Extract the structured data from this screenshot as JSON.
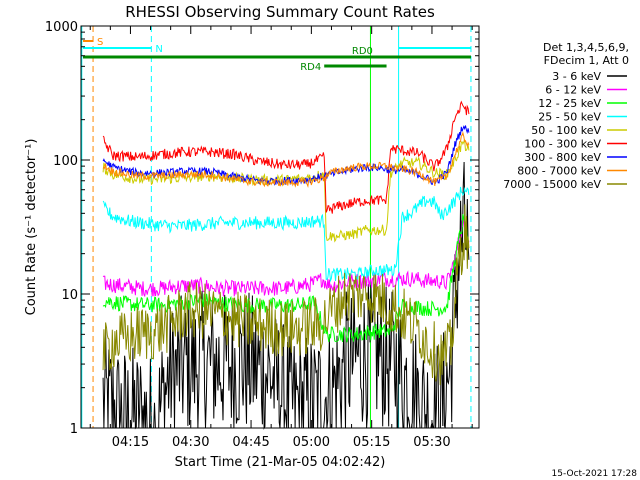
{
  "chart_data": {
    "type": "line",
    "title": "RHESSI Observing Summary Count Rates",
    "xlabel": "Start Time (21-Mar-05 04:02:42)",
    "ylabel": "Count Rate (s⁻¹ detector⁻¹)",
    "yscale": "log",
    "ylim": [
      1,
      1000
    ],
    "xlim_minutes": [
      0,
      99
    ],
    "x_ticks": [
      {
        "t": 12.3,
        "label": "04:15"
      },
      {
        "t": 27.3,
        "label": "04:30"
      },
      {
        "t": 42.3,
        "label": "04:45"
      },
      {
        "t": 57.3,
        "label": "05:00"
      },
      {
        "t": 72.3,
        "label": "05:15"
      },
      {
        "t": 87.3,
        "label": "05:30"
      }
    ],
    "y_ticks": [
      {
        "v": 1,
        "label": "1"
      },
      {
        "v": 10,
        "label": "10"
      },
      {
        "v": 100,
        "label": "100"
      },
      {
        "v": 1000,
        "label": "1000"
      }
    ],
    "legend_header": [
      "Det 1,3,4,5,6,9,",
      "FDecim 1, Att 0"
    ],
    "legend_position": "right",
    "timestamp": "15-Oct-2021 17:28",
    "flags": [
      {
        "label": "S",
        "color": "#ff8800",
        "t0": 0.5,
        "t1": 3.0
      },
      {
        "label": "N",
        "color": "#00ffff",
        "t0": 0.5,
        "t1": 17.5,
        "t2": 79.0,
        "t3": 97.0
      },
      {
        "label": "RD0",
        "color": "#008800",
        "t0": 0.5,
        "t1": 97.0
      },
      {
        "label": "RD4",
        "color": "#008800",
        "t0": 60.5,
        "t1": 76.0
      }
    ],
    "vlines": [
      {
        "t": 0.2,
        "color": "#00ffff",
        "style": "solid"
      },
      {
        "t": 3.0,
        "color": "#ff8800",
        "style": "dashed"
      },
      {
        "t": 17.5,
        "color": "#00ffff",
        "style": "dashed"
      },
      {
        "t": 79.0,
        "color": "#00ffff",
        "style": "solid"
      },
      {
        "t": 97.0,
        "color": "#00ffff",
        "style": "dashed"
      },
      {
        "t": 72.0,
        "color": "#00ff00",
        "style": "solid"
      }
    ],
    "series": [
      {
        "name": "3 - 6 keV",
        "color": "#000000",
        "x": [
          5.5,
          10,
          15,
          18.5,
          22,
          27,
          32,
          37,
          42,
          47,
          52,
          57,
          62,
          66,
          70,
          74,
          78,
          82,
          86,
          88,
          90,
          92,
          94,
          95.5,
          96.5
        ],
        "y": [
          1.6,
          1.2,
          1.2,
          1.0,
          2.5,
          3.0,
          3.0,
          3.0,
          3.0,
          2.5,
          1.5,
          1.5,
          1.8,
          3.0,
          3.5,
          3.5,
          3.0,
          2.0,
          1.3,
          1.3,
          1.5,
          3.0,
          20,
          32,
          18
        ]
      },
      {
        "name": "6 - 12 keV",
        "color": "#ff00ff",
        "x": [
          5.5,
          10,
          15,
          20,
          25,
          30,
          35,
          40,
          45,
          50,
          55,
          58,
          60,
          62,
          65,
          68,
          71,
          74,
          77,
          80,
          83,
          86,
          89,
          91,
          93,
          95,
          96.5
        ],
        "y": [
          12,
          11.5,
          11,
          11,
          11.5,
          11.5,
          11,
          11,
          11,
          11,
          11.5,
          12,
          13,
          11.5,
          12,
          12.5,
          12.5,
          13,
          13,
          13,
          13,
          12.5,
          12.5,
          12,
          18,
          35,
          25
        ]
      },
      {
        "name": "12 - 25 keV",
        "color": "#00ff00",
        "x": [
          5.5,
          10,
          15,
          20,
          25,
          30,
          35,
          40,
          45,
          50,
          55,
          58,
          61,
          64,
          68,
          71,
          74,
          77,
          80,
          83,
          86,
          89,
          91,
          93,
          95,
          96.5
        ],
        "y": [
          9,
          8.5,
          8.3,
          8.3,
          8.6,
          9,
          8.5,
          8.3,
          8.2,
          8.2,
          8.3,
          8.6,
          5,
          5,
          5,
          5.1,
          5.3,
          5.2,
          8.2,
          8,
          7.8,
          7.8,
          8,
          18,
          35,
          25
        ]
      },
      {
        "name": "25 - 50 keV",
        "color": "#00ffff",
        "x": [
          5.5,
          8,
          12,
          18,
          24,
          30,
          36,
          42,
          48,
          54,
          58,
          60.5,
          61,
          65,
          69,
          73,
          76,
          78,
          80,
          82,
          84,
          86,
          88,
          89.5,
          91,
          93,
          95,
          96.5
        ],
        "y": [
          44,
          38,
          35,
          33,
          32,
          33,
          34,
          34,
          34,
          34,
          35,
          35,
          14,
          14,
          14,
          15,
          15,
          15,
          38,
          40,
          45,
          50,
          48,
          38,
          42,
          50,
          60,
          55
        ]
      },
      {
        "name": "50 - 100 keV",
        "color": "#cccc00",
        "x": [
          5.5,
          8,
          14,
          20,
          26,
          32,
          38,
          44,
          50,
          56,
          59,
          60.5,
          61,
          64,
          68,
          71,
          74,
          76,
          77,
          80,
          84,
          88,
          91,
          93,
          95,
          96.5
        ],
        "y": [
          88,
          78,
          72,
          72,
          74,
          76,
          73,
          71,
          71,
          73,
          77,
          80,
          27,
          27,
          28,
          30,
          30,
          30,
          80,
          95,
          95,
          80,
          78,
          100,
          135,
          118
        ]
      },
      {
        "name": "100 - 300 keV",
        "color": "#ff0000",
        "x": [
          5.5,
          8,
          14,
          20,
          26,
          32,
          38,
          44,
          50,
          56,
          59,
          60.5,
          61,
          64,
          68,
          71,
          74,
          76,
          77,
          80,
          84,
          88,
          91,
          93,
          95,
          96.5
        ],
        "y": [
          140,
          108,
          105,
          110,
          115,
          115,
          110,
          98,
          92,
          92,
          100,
          105,
          42,
          45,
          48,
          50,
          50,
          50,
          122,
          118,
          112,
          88,
          120,
          210,
          260,
          220
        ]
      },
      {
        "name": "300 - 800 keV",
        "color": "#0000ff",
        "x": [
          5.5,
          8,
          14,
          20,
          26,
          32,
          38,
          44,
          50,
          56,
          59,
          60.5,
          62,
          65,
          68,
          71,
          74,
          76,
          77,
          80,
          84,
          88,
          91,
          93,
          95,
          96.5
        ],
        "y": [
          100,
          88,
          80,
          80,
          82,
          82,
          75,
          70,
          70,
          71,
          74,
          76,
          78,
          82,
          86,
          88,
          88,
          86,
          84,
          84,
          78,
          68,
          80,
          130,
          180,
          160
        ]
      },
      {
        "name": "800 - 7000 keV",
        "color": "#ff8800",
        "x": [
          5.5,
          8,
          14,
          20,
          26,
          32,
          38,
          44,
          50,
          56,
          59,
          60.5,
          62,
          65,
          68,
          71,
          74,
          76,
          77,
          80,
          84,
          88,
          91,
          93,
          95,
          96.5
        ],
        "y": [
          92,
          82,
          76,
          76,
          78,
          78,
          72,
          68,
          68,
          68,
          71,
          74,
          80,
          85,
          88,
          90,
          90,
          90,
          88,
          86,
          80,
          68,
          75,
          110,
          150,
          130
        ]
      },
      {
        "name": "7000 - 15000 keV",
        "color": "#888800",
        "x": [
          5.5,
          8,
          11,
          14,
          18,
          22,
          26,
          30,
          34,
          38,
          42,
          46,
          50,
          54,
          58,
          60,
          63,
          66,
          69,
          72,
          75,
          78,
          81,
          84,
          87,
          90,
          92,
          94,
          95.5,
          96.5
        ],
        "y": [
          3.5,
          4.5,
          4.5,
          5,
          5.2,
          6,
          7.5,
          7.5,
          7,
          6.5,
          6,
          5.8,
          5.5,
          5.5,
          5.8,
          6,
          8,
          10,
          10,
          10,
          9,
          8,
          6.5,
          5.5,
          4,
          3.3,
          4,
          18,
          30,
          22
        ]
      }
    ]
  }
}
